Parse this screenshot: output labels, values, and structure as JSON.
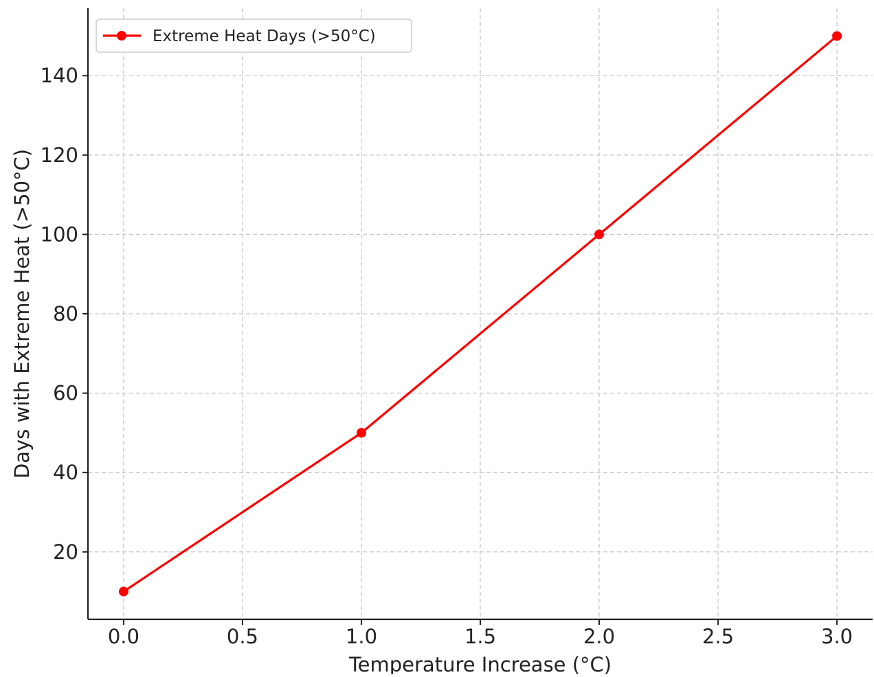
{
  "chart_data": {
    "type": "line",
    "title": "",
    "xlabel": "Temperature Increase (°C)",
    "ylabel": "Days with Extreme Heat (>50°C)",
    "x": [
      0.0,
      1.0,
      2.0,
      3.0
    ],
    "series": [
      {
        "name": "Extreme Heat Days (>50°C)",
        "values": [
          10,
          50,
          100,
          150
        ],
        "color": "#ff0000",
        "marker": "circle"
      }
    ],
    "xlim": [
      -0.15,
      3.15
    ],
    "ylim": [
      3,
      157
    ],
    "x_ticks": [
      0.0,
      0.5,
      1.0,
      1.5,
      2.0,
      2.5,
      3.0
    ],
    "x_tick_labels": [
      "0.0",
      "0.5",
      "1.0",
      "1.5",
      "2.0",
      "2.5",
      "3.0"
    ],
    "y_ticks": [
      20,
      40,
      60,
      80,
      100,
      120,
      140
    ],
    "y_tick_labels": [
      "20",
      "40",
      "60",
      "80",
      "100",
      "120",
      "140"
    ],
    "grid": true,
    "legend_position": "top-left"
  }
}
